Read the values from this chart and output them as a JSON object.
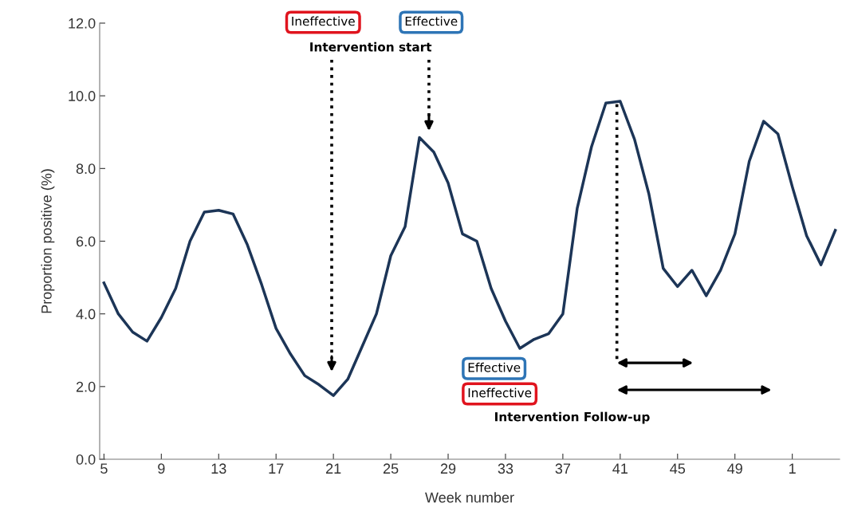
{
  "chart_data": {
    "type": "line",
    "xlabel": "Week number",
    "ylabel": "Proportion positive (%)",
    "categories": [
      "5",
      null,
      null,
      null,
      "9",
      null,
      null,
      null,
      "13",
      null,
      null,
      null,
      "17",
      null,
      null,
      null,
      "21",
      null,
      null,
      null,
      "25",
      null,
      null,
      null,
      "29",
      null,
      null,
      null,
      "33",
      null,
      null,
      null,
      "37",
      null,
      null,
      null,
      "41",
      null,
      null,
      null,
      "45",
      null,
      null,
      null,
      "49",
      null,
      null,
      null,
      "1",
      null,
      null,
      null
    ],
    "series": [
      {
        "color": "#1c3557",
        "values": [
          4.85,
          4.0,
          3.5,
          3.25,
          3.9,
          4.7,
          6.0,
          6.8,
          6.85,
          6.75,
          5.9,
          4.8,
          3.6,
          2.9,
          2.3,
          2.05,
          1.75,
          2.2,
          3.1,
          4.0,
          5.6,
          6.4,
          8.85,
          8.45,
          7.6,
          6.2,
          6.0,
          4.7,
          3.8,
          3.05,
          3.3,
          3.45,
          4.0,
          6.9,
          8.6,
          9.8,
          9.85,
          8.8,
          7.3,
          5.25,
          4.75,
          5.2,
          4.5,
          5.2,
          6.2,
          8.2,
          9.3,
          8.95,
          7.5,
          6.15,
          5.35,
          6.3
        ]
      }
    ],
    "ylim": [
      0,
      12
    ],
    "yticks": [
      {
        "value": 0,
        "label": "0.0"
      },
      {
        "value": 2,
        "label": "2.0"
      },
      {
        "value": 4,
        "label": "4.0"
      },
      {
        "value": 6,
        "label": "6.0"
      },
      {
        "value": 8,
        "label": "8.0"
      },
      {
        "value": 10,
        "label": "10.0"
      },
      {
        "value": 12,
        "label": "12.0"
      }
    ],
    "grid": false,
    "marker": "none",
    "line_style": "solid",
    "annotations": [
      "Ineffective",
      "Effective",
      "Intervention start",
      "Effective",
      "Ineffective",
      "Intervention Follow-up"
    ]
  }
}
